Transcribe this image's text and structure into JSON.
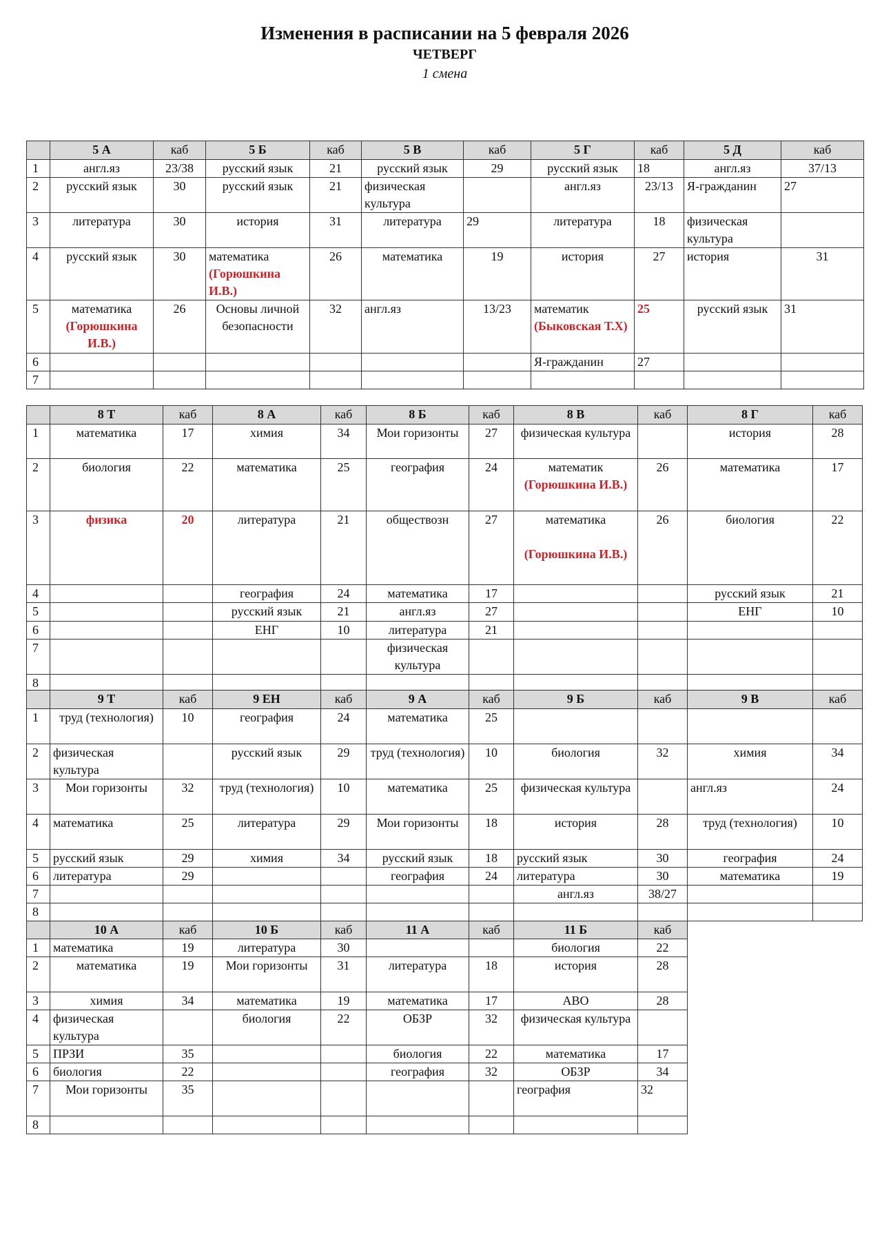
{
  "header": {
    "title": "Изменения в расписании на 5 февраля  2026",
    "day": "ЧЕТВЕРГ",
    "shift": "1 смена"
  },
  "colors": {
    "header_bg": "#d9d9d9",
    "highlight_red": "#c0272d"
  },
  "tables": [
    {
      "room_label": "каб",
      "classes": [
        "5 А",
        "5 Б",
        "5 В",
        "5 Г",
        "5 Д"
      ],
      "rows": [
        {
          "num": "1",
          "cells": [
            "англ.яз",
            "23/38",
            "русский язык",
            "21",
            "русский язык",
            "29",
            "русский язык",
            "18",
            "англ.яз",
            "37/13"
          ]
        },
        {
          "num": "2",
          "cells": [
            "русский язык",
            "30",
            "русский язык",
            "21",
            "физическая культура",
            "",
            "англ.яз",
            "23/13",
            "Я-гражданин",
            "27"
          ]
        },
        {
          "num": "3",
          "cells": [
            "литература",
            "30",
            "история",
            "31",
            "литература",
            "29",
            "литература",
            "18",
            "физическая культура",
            ""
          ]
        },
        {
          "num": "4",
          "cells": [
            "русский язык",
            "30",
            {
              "s": "математика",
              "n": "(Горюшкина И.В.)"
            },
            "26",
            "математика",
            "19",
            "история",
            "27",
            "история",
            "31"
          ]
        },
        {
          "num": "5",
          "cells": [
            {
              "s": "математика",
              "n": "(Горюшкина И.В.)"
            },
            "26",
            "Основы личной безопасности",
            "32",
            "англ.яз",
            "13/23",
            {
              "s": "математик",
              "n": "(Быковская Т.Х)"
            },
            {
              "s": "25",
              "red": true
            },
            "русский язык",
            "31"
          ]
        },
        {
          "num": "6",
          "cells": [
            "",
            "",
            "",
            "",
            "",
            "",
            "Я-гражданин",
            "27",
            "",
            ""
          ]
        },
        {
          "num": "7",
          "cells": [
            "",
            "",
            "",
            "",
            "",
            "",
            "",
            "",
            "",
            ""
          ]
        }
      ]
    },
    {
      "room_label": "каб",
      "classes": [
        "8 Т",
        "8 А",
        "8 Б",
        "8 В",
        "8 Г"
      ],
      "rows": [
        {
          "num": "1",
          "cells": [
            "математика",
            "17",
            "химия",
            "34",
            "Мои горизонты",
            "27",
            "физическая культура",
            "",
            "история",
            "28"
          ]
        },
        {
          "num": "2",
          "cells": [
            "биология",
            "22",
            "математика",
            "25",
            "география",
            "24",
            {
              "s": "математик",
              "n": "(Горюшкина И.В.)"
            },
            "26",
            "математика",
            "17"
          ]
        },
        {
          "num": "3",
          "cells": [
            {
              "s": "физика",
              "red": true
            },
            {
              "s": "20",
              "red": true
            },
            "литература",
            "21",
            "обществозн",
            "27",
            {
              "s": "математика",
              "n": "(Горюшкина И.В.)"
            },
            "26",
            "биология",
            "22"
          ]
        },
        {
          "num": "4",
          "cells": [
            "",
            "",
            "география",
            "24",
            "математика",
            "17",
            "",
            "",
            "русский язык",
            "21"
          ]
        },
        {
          "num": "5",
          "cells": [
            "",
            "",
            "русский язык",
            "21",
            "англ.яз",
            "27",
            "",
            "",
            "ЕНГ",
            "10"
          ]
        },
        {
          "num": "6",
          "cells": [
            "",
            "",
            "ЕНГ",
            "10",
            "литература",
            "21",
            "",
            "",
            "",
            ""
          ]
        },
        {
          "num": "7",
          "cells": [
            "",
            "",
            "",
            "",
            "физическая культура",
            "",
            "",
            "",
            "",
            ""
          ]
        },
        {
          "num": "8",
          "cells": [
            "",
            "",
            "",
            "",
            "",
            "",
            "",
            "",
            "",
            ""
          ]
        }
      ]
    },
    {
      "room_label": "каб",
      "classes": [
        "9 Т",
        "9 ЕН",
        "9 А",
        "9 Б",
        "9 В"
      ],
      "rows": [
        {
          "num": "1",
          "cells": [
            "труд (технология)",
            "10",
            "география",
            "24",
            "математика",
            "25",
            "",
            "",
            "",
            ""
          ]
        },
        {
          "num": "2",
          "cells": [
            "физическая культура",
            "",
            "русский язык",
            "29",
            "труд (технология)",
            "10",
            "биология",
            "32",
            "химия",
            "34"
          ]
        },
        {
          "num": "3",
          "cells": [
            "Мои горизонты",
            "32",
            "труд (технология)",
            "10",
            "математика",
            "25",
            "физическая культура",
            "",
            "англ.яз",
            "24"
          ]
        },
        {
          "num": "4",
          "cells": [
            "математика",
            "25",
            "литература",
            "29",
            "Мои горизонты",
            "18",
            "история",
            "28",
            "труд (технология)",
            "10"
          ]
        },
        {
          "num": "5",
          "cells": [
            "русский язык",
            "29",
            "химия",
            "34",
            "русский язык",
            "18",
            "русский язык",
            "30",
            "география",
            "24"
          ]
        },
        {
          "num": "6",
          "cells": [
            "литература",
            "29",
            "",
            "",
            "география",
            "24",
            "литература",
            "30",
            "математика",
            "19"
          ]
        },
        {
          "num": "7",
          "cells": [
            "",
            "",
            "",
            "",
            "",
            "",
            "англ.яз",
            "38/27",
            "",
            ""
          ]
        },
        {
          "num": "8",
          "cells": [
            "",
            "",
            "",
            "",
            "",
            "",
            "",
            "",
            "",
            ""
          ]
        }
      ]
    },
    {
      "room_label": "каб",
      "classes": [
        "10 А",
        "10 Б",
        "11 А",
        "11 Б"
      ],
      "rows": [
        {
          "num": "1",
          "cells": [
            "математика",
            "19",
            "литература",
            "30",
            "",
            "",
            "биология",
            "22"
          ]
        },
        {
          "num": "2",
          "cells": [
            "математика",
            "19",
            "Мои горизонты",
            "31",
            "литература",
            "18",
            "история",
            "28"
          ]
        },
        {
          "num": "3",
          "cells": [
            "химия",
            "34",
            "математика",
            "19",
            "математика",
            "17",
            "АВО",
            "28"
          ]
        },
        {
          "num": "4",
          "cells": [
            "физическая культура",
            "",
            "биология",
            "22",
            "ОБЗР",
            "32",
            "физическая культура",
            ""
          ]
        },
        {
          "num": "5",
          "cells": [
            "ПРЗИ",
            "35",
            "",
            "",
            "биология",
            "22",
            "математика",
            "17"
          ]
        },
        {
          "num": "6",
          "cells": [
            "биология",
            "22",
            "",
            "",
            "география",
            "32",
            "ОБЗР",
            "34"
          ]
        },
        {
          "num": "7",
          "cells": [
            "Мои горизонты",
            "35",
            "",
            "",
            "",
            "",
            "география",
            "32"
          ]
        },
        {
          "num": "8",
          "cells": [
            "",
            "",
            "",
            "",
            "",
            "",
            "",
            ""
          ]
        }
      ]
    }
  ]
}
